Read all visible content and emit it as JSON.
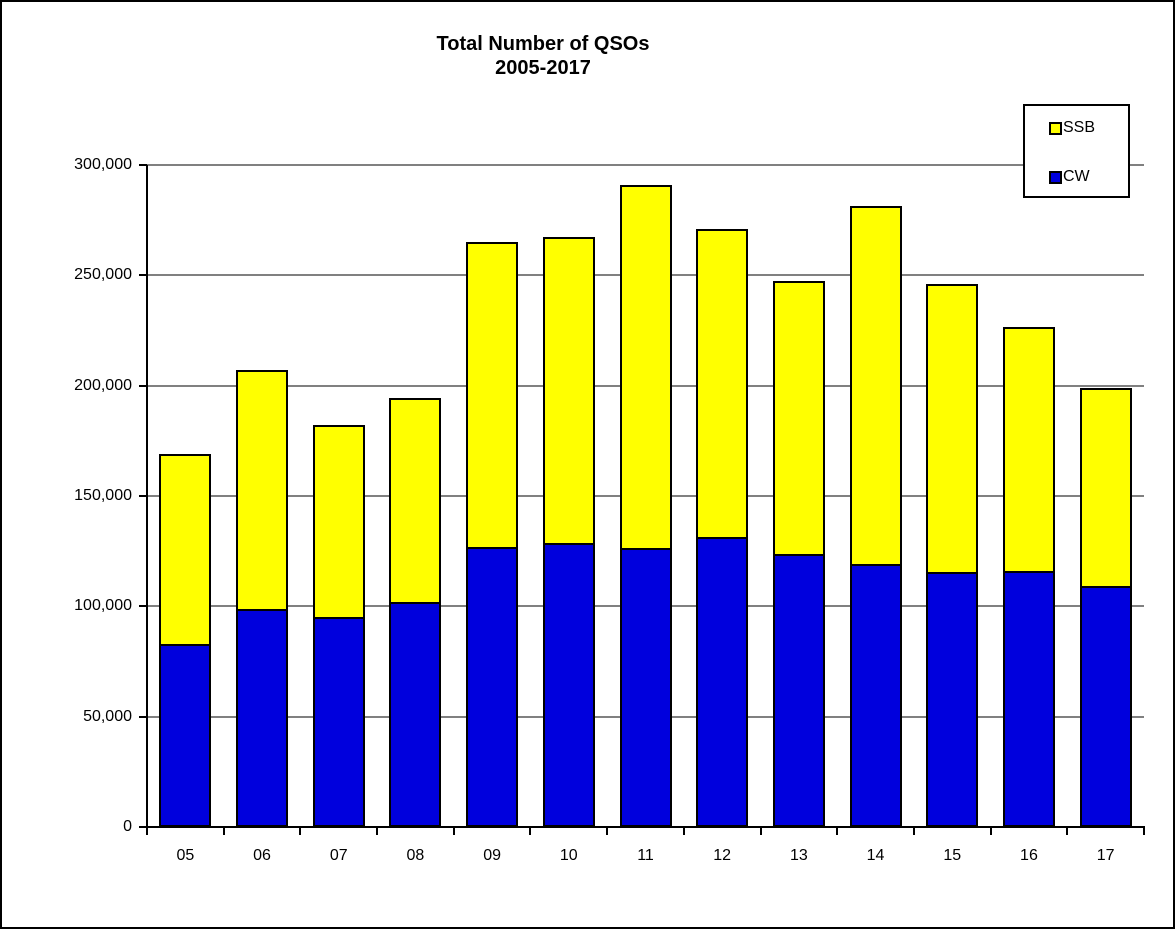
{
  "chart_data": {
    "type": "bar",
    "stacked": true,
    "title": "Total Number of QSOs",
    "subtitle": "2005-2017",
    "categories": [
      "05",
      "06",
      "07",
      "08",
      "09",
      "10",
      "11",
      "12",
      "13",
      "14",
      "15",
      "16",
      "17"
    ],
    "series": [
      {
        "name": "CW",
        "color": "#0000dd",
        "values": [
          83000,
          99000,
          95000,
          102000,
          127000,
          128500,
          126500,
          131500,
          123500,
          119000,
          115500,
          116000,
          109000
        ]
      },
      {
        "name": "SSB",
        "color": "#ffff00",
        "values": [
          86000,
          108000,
          87000,
          92500,
          138000,
          139000,
          164500,
          139500,
          124000,
          162500,
          130500,
          110500,
          90000
        ]
      }
    ],
    "totals": [
      169000,
      207000,
      182000,
      194500,
      265000,
      267500,
      291000,
      271000,
      247500,
      281500,
      246000,
      226500,
      199000
    ],
    "xlabel": "",
    "ylabel": "",
    "ylim": [
      0,
      300000
    ],
    "ytick_interval": 50000,
    "ytick_labels": [
      "0",
      "50,000",
      "100,000",
      "150,000",
      "200,000",
      "250,000",
      "300,000"
    ],
    "grid": true,
    "gridline_color": "#808080",
    "axis_color": "#000000",
    "bar_border_color": "#000000",
    "legend_position": "top-right",
    "legend_order": [
      "SSB",
      "CW"
    ]
  }
}
